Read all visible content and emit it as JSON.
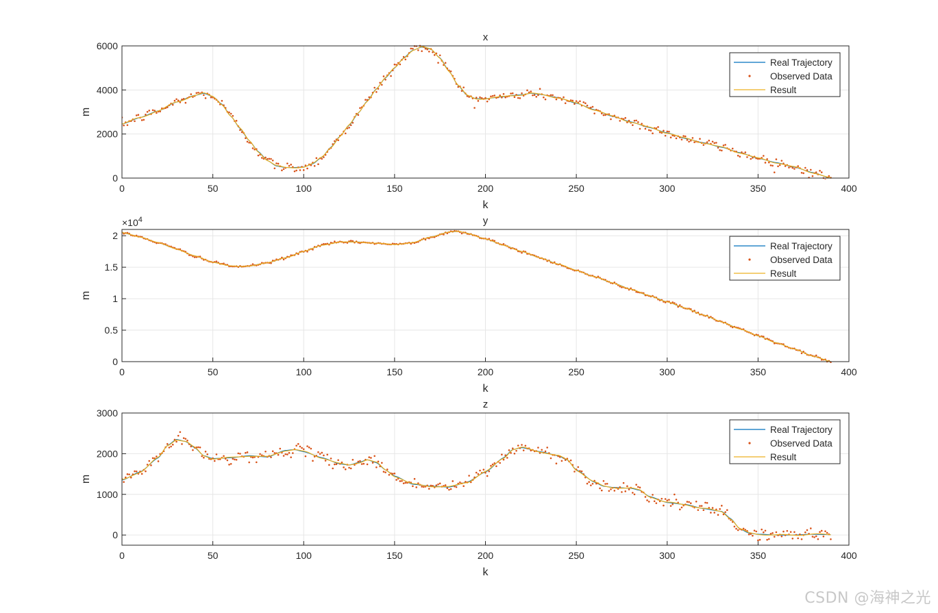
{
  "watermark": "CSDN @海神之光",
  "colors": {
    "real": "#0072BD",
    "observed": "#D95319",
    "result": "#EDB120",
    "grid": "#e6e6e6",
    "axis": "#262626"
  },
  "legend": [
    "Real Trajectory",
    "Observed Data",
    "Result"
  ],
  "chart_data": [
    {
      "type": "line",
      "title": "x",
      "xlabel": "k",
      "ylabel": "m",
      "xlim": [
        0,
        400
      ],
      "ylim": [
        0,
        6000
      ],
      "xticks": [
        "0",
        "50",
        "100",
        "150",
        "200",
        "250",
        "300",
        "350",
        "400"
      ],
      "yticks": [
        {
          "value": 0,
          "label": "0"
        },
        {
          "value": 2000,
          "label": "2000"
        },
        {
          "value": 4000,
          "label": "4000"
        },
        {
          "value": 6000,
          "label": "6000"
        }
      ],
      "exponent": "",
      "grid": true,
      "legend_position": "top-right",
      "noise": 180,
      "points": [
        [
          0,
          2450
        ],
        [
          10,
          2750
        ],
        [
          20,
          3050
        ],
        [
          30,
          3450
        ],
        [
          40,
          3750
        ],
        [
          45,
          3850
        ],
        [
          50,
          3700
        ],
        [
          55,
          3350
        ],
        [
          60,
          2800
        ],
        [
          65,
          2250
        ],
        [
          70,
          1700
        ],
        [
          75,
          1200
        ],
        [
          80,
          800
        ],
        [
          85,
          550
        ],
        [
          90,
          480
        ],
        [
          95,
          480
        ],
        [
          100,
          500
        ],
        [
          105,
          650
        ],
        [
          110,
          950
        ],
        [
          115,
          1400
        ],
        [
          120,
          1900
        ],
        [
          125,
          2400
        ],
        [
          130,
          2950
        ],
        [
          135,
          3500
        ],
        [
          140,
          4050
        ],
        [
          145,
          4550
        ],
        [
          150,
          5000
        ],
        [
          155,
          5450
        ],
        [
          160,
          5800
        ],
        [
          165,
          5950
        ],
        [
          170,
          5850
        ],
        [
          175,
          5450
        ],
        [
          180,
          4850
        ],
        [
          185,
          4200
        ],
        [
          190,
          3750
        ],
        [
          195,
          3600
        ],
        [
          200,
          3600
        ],
        [
          205,
          3650
        ],
        [
          210,
          3700
        ],
        [
          215,
          3750
        ],
        [
          220,
          3780
        ],
        [
          225,
          3850
        ],
        [
          230,
          3800
        ],
        [
          240,
          3650
        ],
        [
          250,
          3400
        ],
        [
          260,
          3100
        ],
        [
          270,
          2800
        ],
        [
          280,
          2550
        ],
        [
          290,
          2300
        ],
        [
          300,
          2050
        ],
        [
          310,
          1800
        ],
        [
          320,
          1600
        ],
        [
          330,
          1400
        ],
        [
          340,
          1150
        ],
        [
          350,
          900
        ],
        [
          360,
          700
        ],
        [
          370,
          500
        ],
        [
          380,
          250
        ],
        [
          390,
          0
        ]
      ]
    },
    {
      "type": "line",
      "title": "y",
      "xlabel": "k",
      "ylabel": "m",
      "xlim": [
        0,
        400
      ],
      "ylim": [
        0,
        21000
      ],
      "xticks": [
        "0",
        "50",
        "100",
        "150",
        "200",
        "250",
        "300",
        "350",
        "400"
      ],
      "yticks": [
        {
          "value": 0,
          "label": "0"
        },
        {
          "value": 5000,
          "label": "0.5"
        },
        {
          "value": 10000,
          "label": "1"
        },
        {
          "value": 15000,
          "label": "1.5"
        },
        {
          "value": 20000,
          "label": "2"
        }
      ],
      "exponent": "10^4",
      "grid": true,
      "legend_position": "top-right",
      "noise": 150,
      "points": [
        [
          0,
          20500
        ],
        [
          10,
          19800
        ],
        [
          20,
          18900
        ],
        [
          30,
          17900
        ],
        [
          40,
          16800
        ],
        [
          50,
          15800
        ],
        [
          60,
          15200
        ],
        [
          65,
          15100
        ],
        [
          70,
          15200
        ],
        [
          80,
          15700
        ],
        [
          90,
          16500
        ],
        [
          100,
          17500
        ],
        [
          110,
          18500
        ],
        [
          120,
          19000
        ],
        [
          130,
          19000
        ],
        [
          140,
          18800
        ],
        [
          150,
          18600
        ],
        [
          160,
          18900
        ],
        [
          170,
          19800
        ],
        [
          180,
          20600
        ],
        [
          185,
          20700
        ],
        [
          190,
          20400
        ],
        [
          200,
          19500
        ],
        [
          210,
          18500
        ],
        [
          220,
          17500
        ],
        [
          230,
          16500
        ],
        [
          240,
          15500
        ],
        [
          250,
          14500
        ],
        [
          260,
          13500
        ],
        [
          270,
          12500
        ],
        [
          280,
          11500
        ],
        [
          290,
          10500
        ],
        [
          300,
          9500
        ],
        [
          310,
          8500
        ],
        [
          320,
          7400
        ],
        [
          330,
          6300
        ],
        [
          340,
          5200
        ],
        [
          350,
          4100
        ],
        [
          360,
          3000
        ],
        [
          370,
          2000
        ],
        [
          380,
          900
        ],
        [
          390,
          0
        ]
      ]
    },
    {
      "type": "line",
      "title": "z",
      "xlabel": "k",
      "ylabel": "m",
      "xlim": [
        0,
        400
      ],
      "ylim": [
        -250,
        3000
      ],
      "xticks": [
        "0",
        "50",
        "100",
        "150",
        "200",
        "250",
        "300",
        "350",
        "400"
      ],
      "yticks": [
        {
          "value": 0,
          "label": "0"
        },
        {
          "value": 1000,
          "label": "1000"
        },
        {
          "value": 2000,
          "label": "2000"
        },
        {
          "value": 3000,
          "label": "3000"
        }
      ],
      "exponent": "",
      "grid": true,
      "legend_position": "top-right",
      "noise": 120,
      "points": [
        [
          0,
          1350
        ],
        [
          10,
          1550
        ],
        [
          20,
          1900
        ],
        [
          25,
          2200
        ],
        [
          30,
          2350
        ],
        [
          35,
          2300
        ],
        [
          40,
          2150
        ],
        [
          45,
          1950
        ],
        [
          50,
          1880
        ],
        [
          60,
          1900
        ],
        [
          70,
          1950
        ],
        [
          80,
          1920
        ],
        [
          90,
          2080
        ],
        [
          95,
          2100
        ],
        [
          100,
          2050
        ],
        [
          110,
          1900
        ],
        [
          120,
          1750
        ],
        [
          125,
          1720
        ],
        [
          130,
          1780
        ],
        [
          135,
          1850
        ],
        [
          140,
          1780
        ],
        [
          145,
          1600
        ],
        [
          150,
          1450
        ],
        [
          160,
          1250
        ],
        [
          170,
          1200
        ],
        [
          180,
          1180
        ],
        [
          190,
          1300
        ],
        [
          200,
          1550
        ],
        [
          210,
          1900
        ],
        [
          215,
          2100
        ],
        [
          220,
          2150
        ],
        [
          230,
          2050
        ],
        [
          240,
          1950
        ],
        [
          245,
          1850
        ],
        [
          250,
          1600
        ],
        [
          260,
          1300
        ],
        [
          265,
          1200
        ],
        [
          270,
          1170
        ],
        [
          280,
          1150
        ],
        [
          285,
          1100
        ],
        [
          290,
          950
        ],
        [
          300,
          800
        ],
        [
          310,
          750
        ],
        [
          320,
          650
        ],
        [
          330,
          580
        ],
        [
          335,
          400
        ],
        [
          340,
          150
        ],
        [
          345,
          50
        ],
        [
          350,
          20
        ],
        [
          360,
          0
        ],
        [
          370,
          0
        ],
        [
          380,
          20
        ],
        [
          390,
          10
        ]
      ]
    }
  ]
}
